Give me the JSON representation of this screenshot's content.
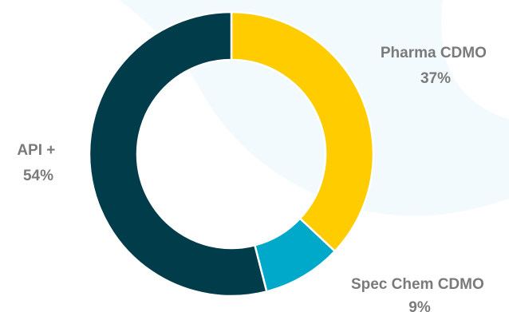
{
  "chart_data": {
    "type": "pie",
    "style": "donut",
    "title": "",
    "slices": [
      {
        "label": "Pharma CDMO",
        "value": 37,
        "value_label": "37%",
        "color": "#ffcc00"
      },
      {
        "label": "Spec Chem CDMO",
        "value": 9,
        "value_label": "9%",
        "color": "#00a9c9"
      },
      {
        "label": "API +",
        "value": 54,
        "value_label": "54%",
        "color": "#013c4a"
      }
    ],
    "start_angle_deg": 0,
    "direction": "clockwise",
    "background_decoration_color": "#f2fafd"
  }
}
